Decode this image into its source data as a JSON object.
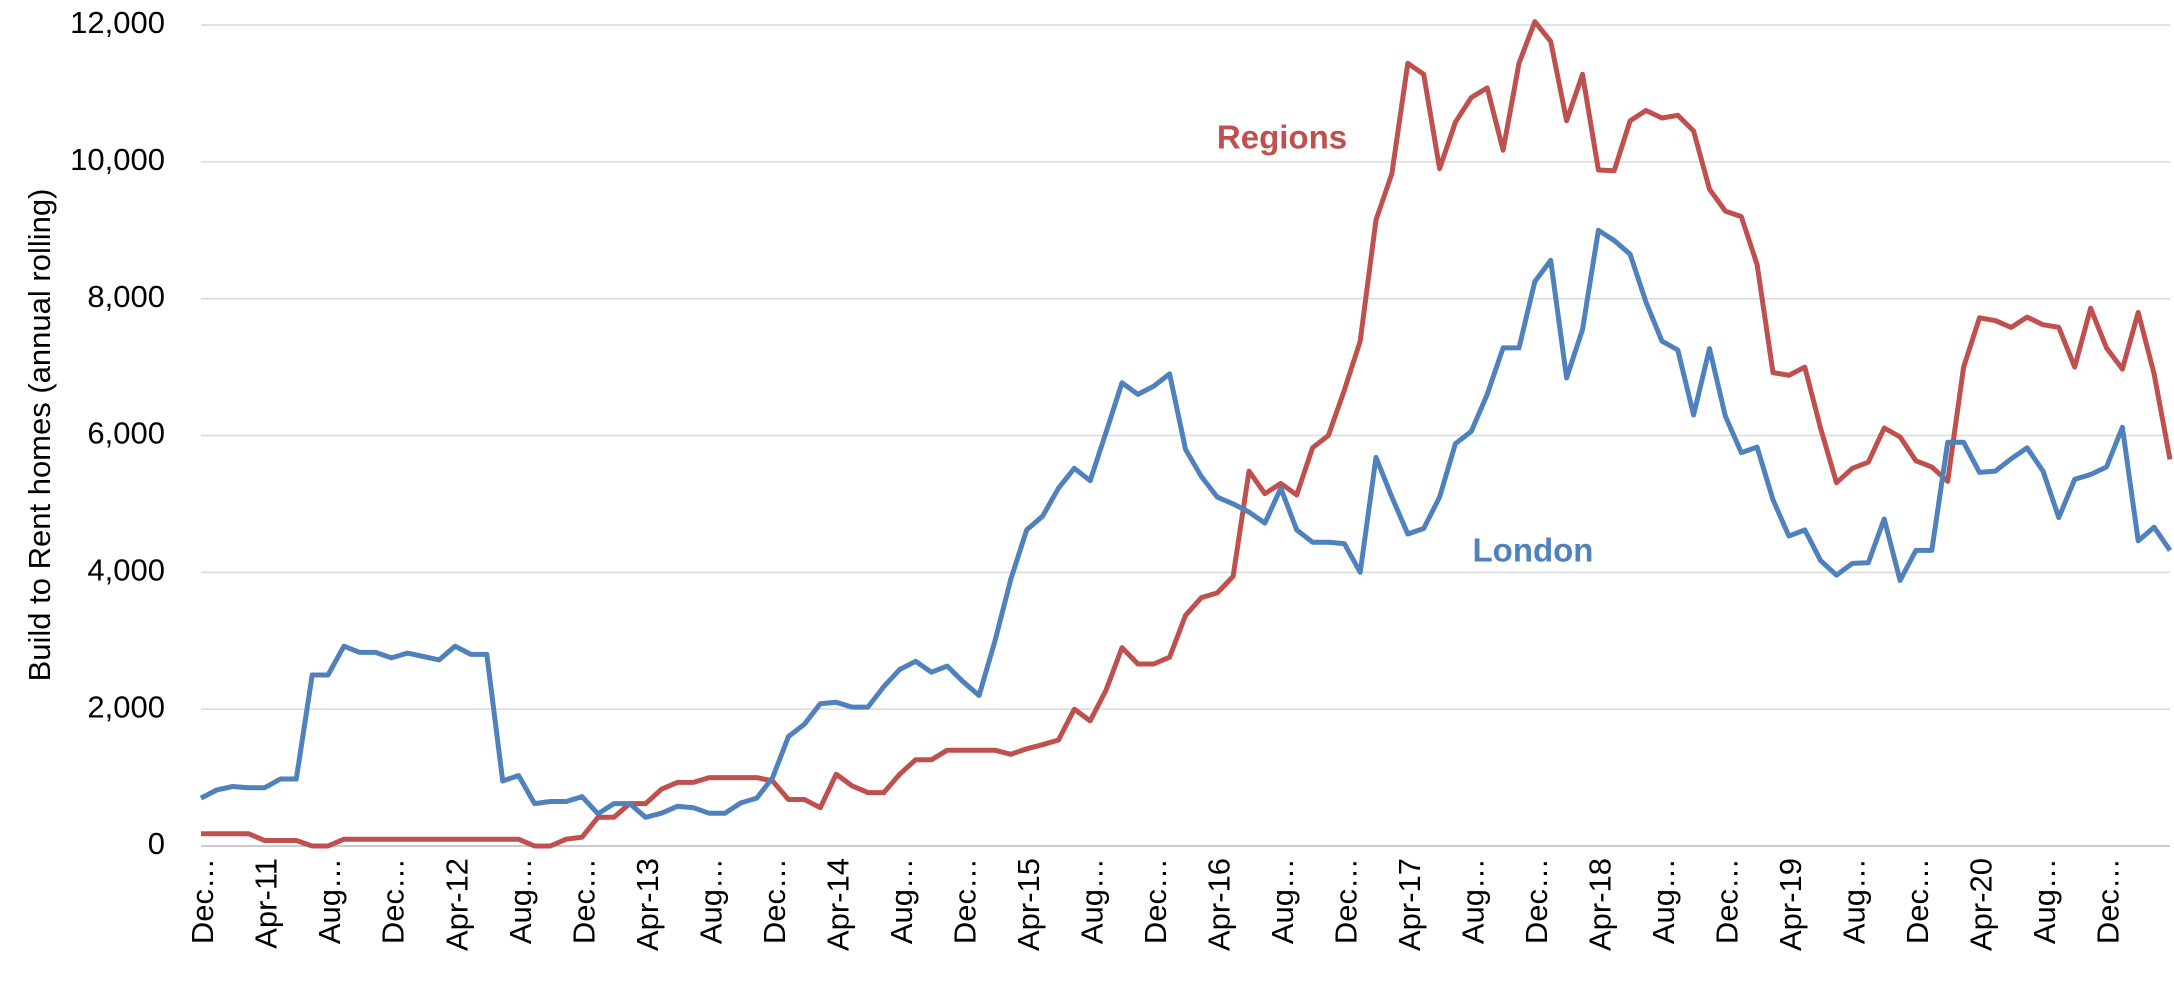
{
  "chart_data": {
    "type": "line",
    "y_label": "Build to Rent homes (annual rolling)",
    "categories": [
      "Dec…",
      null,
      null,
      null,
      "Apr-11",
      null,
      null,
      null,
      "Aug…",
      null,
      null,
      null,
      "Dec…",
      null,
      null,
      null,
      "Apr-12",
      null,
      null,
      null,
      "Aug…",
      null,
      null,
      null,
      "Dec…",
      null,
      null,
      null,
      "Apr-13",
      null,
      null,
      null,
      "Aug…",
      null,
      null,
      null,
      "Dec…",
      null,
      null,
      null,
      "Apr-14",
      null,
      null,
      null,
      "Aug…",
      null,
      null,
      null,
      "Dec…",
      null,
      null,
      null,
      "Apr-15",
      null,
      null,
      null,
      "Aug…",
      null,
      null,
      null,
      "Dec…",
      null,
      null,
      null,
      "Apr-16",
      null,
      null,
      null,
      "Aug…",
      null,
      null,
      null,
      "Dec…",
      null,
      null,
      null,
      "Apr-17",
      null,
      null,
      null,
      "Aug…",
      null,
      null,
      null,
      "Dec…",
      null,
      null,
      null,
      "Apr-18",
      null,
      null,
      null,
      "Aug…",
      null,
      null,
      null,
      "Dec…",
      null,
      null,
      null,
      "Apr-19",
      null,
      null,
      null,
      "Aug…",
      null,
      null,
      null,
      "Dec…",
      null,
      null,
      null,
      "Apr-20",
      null,
      null,
      null,
      "Aug…",
      null,
      null,
      null,
      "Dec…",
      null,
      null,
      null,
      null
    ],
    "series": [
      {
        "name": "Regions",
        "color": "#c0504d",
        "values": [
          180,
          180,
          180,
          180,
          80,
          80,
          80,
          0,
          0,
          100,
          100,
          100,
          100,
          100,
          100,
          100,
          100,
          100,
          100,
          100,
          100,
          0,
          0,
          100,
          130,
          420,
          420,
          620,
          620,
          830,
          930,
          930,
          1000,
          1000,
          1000,
          1000,
          950,
          680,
          680,
          560,
          1050,
          880,
          780,
          780,
          1050,
          1260,
          1260,
          1400,
          1400,
          1400,
          1400,
          1340,
          1420,
          1480,
          1550,
          2000,
          1830,
          2280,
          2900,
          2660,
          2660,
          2760,
          3370,
          3630,
          3700,
          3940,
          5480,
          5150,
          5300,
          5130,
          5820,
          6000,
          6660,
          7380,
          9150,
          9830,
          11440,
          11280,
          9900,
          10580,
          10940,
          11080,
          10170,
          11440,
          12050,
          11760,
          10600,
          11280,
          9880,
          9870,
          10600,
          10750,
          10640,
          10680,
          10450,
          9600,
          9280,
          9200,
          8500,
          6920,
          6880,
          7000,
          6100,
          5310,
          5520,
          5610,
          6110,
          5980,
          5630,
          5540,
          5330,
          7000,
          7720,
          7680,
          7580,
          7730,
          7620,
          7580,
          7000,
          7860,
          7280,
          6970,
          7800,
          6900,
          5650
        ]
      },
      {
        "name": "London",
        "color": "#4f81bd",
        "values": [
          700,
          820,
          870,
          850,
          850,
          980,
          980,
          2500,
          2500,
          2920,
          2830,
          2830,
          2750,
          2820,
          2770,
          2720,
          2920,
          2800,
          2800,
          950,
          1030,
          620,
          650,
          650,
          720,
          470,
          620,
          620,
          420,
          480,
          580,
          560,
          480,
          480,
          630,
          700,
          1000,
          1600,
          1780,
          2080,
          2100,
          2030,
          2030,
          2330,
          2580,
          2700,
          2540,
          2630,
          2400,
          2200,
          3000,
          3900,
          4620,
          4820,
          5230,
          5520,
          5340,
          6050,
          6770,
          6600,
          6720,
          6900,
          5800,
          5400,
          5100,
          5000,
          4880,
          4720,
          5230,
          4620,
          4440,
          4440,
          4420,
          4000,
          5680,
          5100,
          4560,
          4640,
          5100,
          5880,
          6060,
          6600,
          7280,
          7280,
          8250,
          8560,
          6840,
          7550,
          9000,
          8850,
          8650,
          7950,
          7380,
          7250,
          6300,
          7270,
          6280,
          5750,
          5830,
          5060,
          4530,
          4620,
          4170,
          3960,
          4130,
          4140,
          4780,
          3880,
          4320,
          4320,
          5900,
          5900,
          5460,
          5480,
          5660,
          5820,
          5480,
          4800,
          5360,
          5430,
          5540,
          6120,
          4460,
          4660,
          4320
        ]
      }
    ],
    "ylim": [
      0,
      12000
    ],
    "yticks": [
      0,
      {
        "value": 2000,
        "label": "2,000"
      },
      {
        "value": 4000,
        "label": "4,000"
      },
      {
        "value": 6000,
        "label": "6,000"
      },
      {
        "value": 8000,
        "label": "8,000"
      },
      {
        "value": 10000,
        "label": "10,000"
      },
      {
        "value": 12000,
        "label": "12,000"
      }
    ],
    "grid": true
  }
}
